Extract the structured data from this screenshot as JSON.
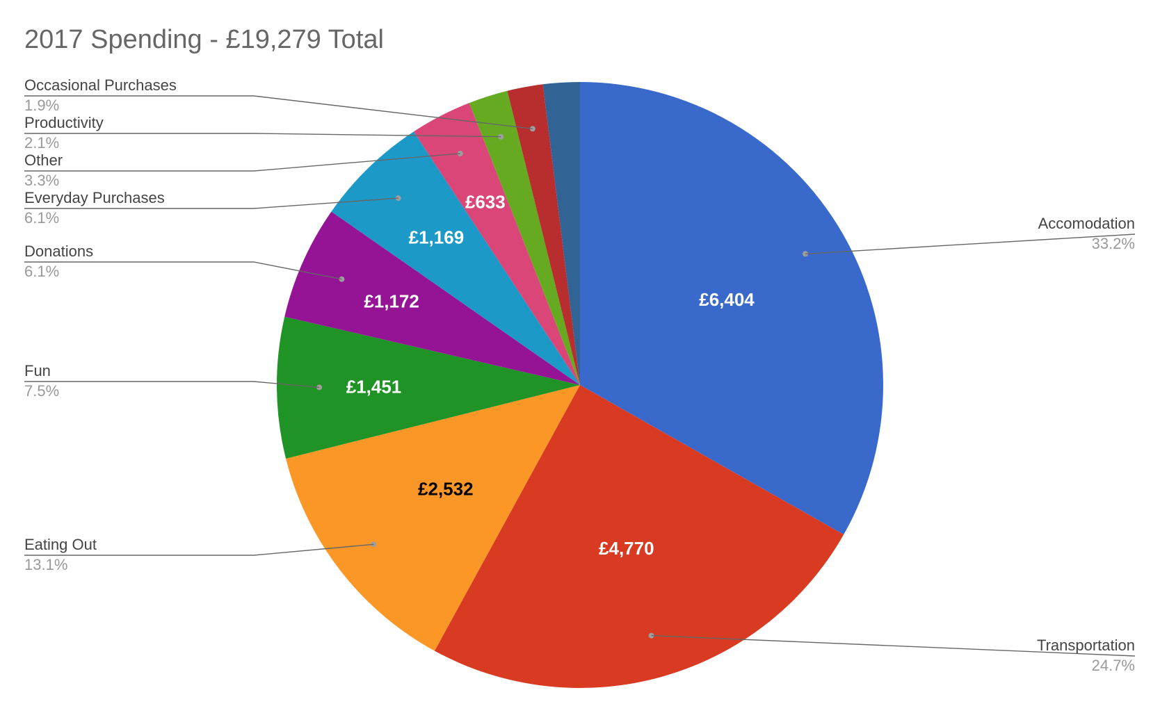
{
  "chart_data": {
    "type": "pie",
    "title": "2017 Spending - £19,279 Total",
    "start_angle_deg": 0,
    "direction": "clockwise",
    "slices": [
      {
        "name": "Accomodation",
        "value": 6404,
        "value_label": "£6,404",
        "percent_label": "33.2%",
        "color": "#3869CB",
        "value_label_color": "#ffffff",
        "label_side": "right"
      },
      {
        "name": "Transportation",
        "value": 4770,
        "value_label": "£4,770",
        "percent_label": "24.7%",
        "color": "#D83A22",
        "value_label_color": "#ffffff",
        "label_side": "right"
      },
      {
        "name": "Eating Out",
        "value": 2532,
        "value_label": "£2,532",
        "percent_label": "13.1%",
        "color": "#FA9726",
        "value_label_color": "#000000",
        "label_side": "left"
      },
      {
        "name": "Fun",
        "value": 1451,
        "value_label": "£1,451",
        "percent_label": "7.5%",
        "color": "#1F9325",
        "value_label_color": "#ffffff",
        "label_side": "left"
      },
      {
        "name": "Donations",
        "value": 1172,
        "value_label": "£1,172",
        "percent_label": "6.1%",
        "color": "#951496",
        "value_label_color": "#ffffff",
        "label_side": "left"
      },
      {
        "name": "Everyday Purchases",
        "value": 1169,
        "value_label": "£1,169",
        "percent_label": "6.1%",
        "color": "#1C99C6",
        "value_label_color": "#ffffff",
        "label_side": "left"
      },
      {
        "name": "Other",
        "value": 633,
        "value_label": "£633",
        "percent_label": "3.3%",
        "color": "#DA4678",
        "value_label_color": "#ffffff",
        "label_side": "left"
      },
      {
        "name": "Productivity",
        "value": 405,
        "value_label": "",
        "percent_label": "2.1%",
        "color": "#66AA22",
        "value_label_color": "#ffffff",
        "label_side": "left"
      },
      {
        "name": "Occasional Purchases",
        "value": 366,
        "value_label": "",
        "percent_label": "1.9%",
        "color": "#B82E2E",
        "value_label_color": "#ffffff",
        "label_side": "left"
      },
      {
        "name": "",
        "value": 377,
        "value_label": "",
        "percent_label": "",
        "color": "#316395",
        "value_label_color": "#ffffff",
        "label_side": "none"
      }
    ]
  }
}
